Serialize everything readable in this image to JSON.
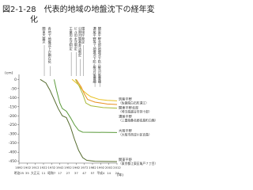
{
  "chart_data": {
    "type": "line",
    "title": "図2-1-28　代表的地域の地盤沈下の経年変化",
    "y_unit": "(cm)",
    "x_unit": "(年)",
    "xlim": [
      1892,
      2012
    ],
    "xticks": [
      1892,
      1902,
      1912,
      1922,
      1932,
      1942,
      1952,
      1962,
      1972,
      1982,
      1992,
      2002,
      2012
    ],
    "era_labels": [
      "明治25",
      "35",
      "大正元",
      "11",
      "昭和7",
      "17",
      "27",
      "37",
      "47",
      "57",
      "平成4",
      "14",
      "24"
    ],
    "ylim": [
      -460,
      10
    ],
    "yticks": [
      0,
      -50,
      -100,
      -150,
      -200,
      -250,
      -300,
      -350,
      -400,
      -450
    ],
    "annotations": [
      {
        "text": "関東大震災",
        "year": 1923
      },
      {
        "text": "各地で地盤沈下が顕在化",
        "year": 1930
      },
      {
        "text": "工業用水法制定",
        "year": 1956
      },
      {
        "text": "ビル用水法制定",
        "year": 1962
      },
      {
        "text": "公害対策基本法制定",
        "year": 1967
      },
      {
        "text": "環境庁発足",
        "year": 1971
      },
      {
        "text": "濃尾平野等で地盤沈下防止等対策要綱",
        "year": 1985
      },
      {
        "text": "関東平野北部地盤沈下防止等対策要綱",
        "year": 1991
      }
    ],
    "series": [
      {
        "name": "筑紫平野",
        "location": "（佐賀県白石町遠江）",
        "color": "#e8c020",
        "x": [
          1957,
          1965,
          1970,
          1975,
          1980,
          1990,
          2000,
          2012
        ],
        "values": [
          0,
          -30,
          -60,
          -80,
          -95,
          -110,
          -115,
          -118
        ]
      },
      {
        "name": "関東平野北部",
        "location": "（埼玉県越谷市弥十郎）",
        "color": "#e89020",
        "x": [
          1962,
          1968,
          1972,
          1976,
          1985,
          2000,
          2012
        ],
        "values": [
          0,
          -40,
          -80,
          -110,
          -125,
          -135,
          -138
        ]
      },
      {
        "name": "濃尾平野",
        "location": "（三重県桑名郡長島町白鶏）",
        "color": "#a8b838",
        "x": [
          1961,
          1966,
          1970,
          1974,
          1980,
          1995,
          2012
        ],
        "values": [
          0,
          -40,
          -80,
          -130,
          -145,
          -155,
          -158
        ]
      },
      {
        "name": "大阪平野",
        "location": "（大阪市西淀川区百島）",
        "color": "#5a9a3a",
        "x": [
          1935,
          1938,
          1942,
          1945,
          1950,
          1955,
          1960,
          1965,
          1970,
          2012
        ],
        "values": [
          0,
          -60,
          -130,
          -160,
          -175,
          -210,
          -250,
          -280,
          -290,
          -292
        ]
      },
      {
        "name": "関東平野",
        "location": "（東京都江東区亀戸７丁目）",
        "color": "#556b2f",
        "x": [
          1918,
          1925,
          1930,
          1935,
          1940,
          1945,
          1950,
          1955,
          1960,
          1965,
          1970,
          1975,
          1985,
          2012
        ],
        "values": [
          0,
          -20,
          -60,
          -110,
          -160,
          -200,
          -210,
          -260,
          -330,
          -390,
          -430,
          -445,
          -450,
          -452
        ]
      }
    ]
  }
}
